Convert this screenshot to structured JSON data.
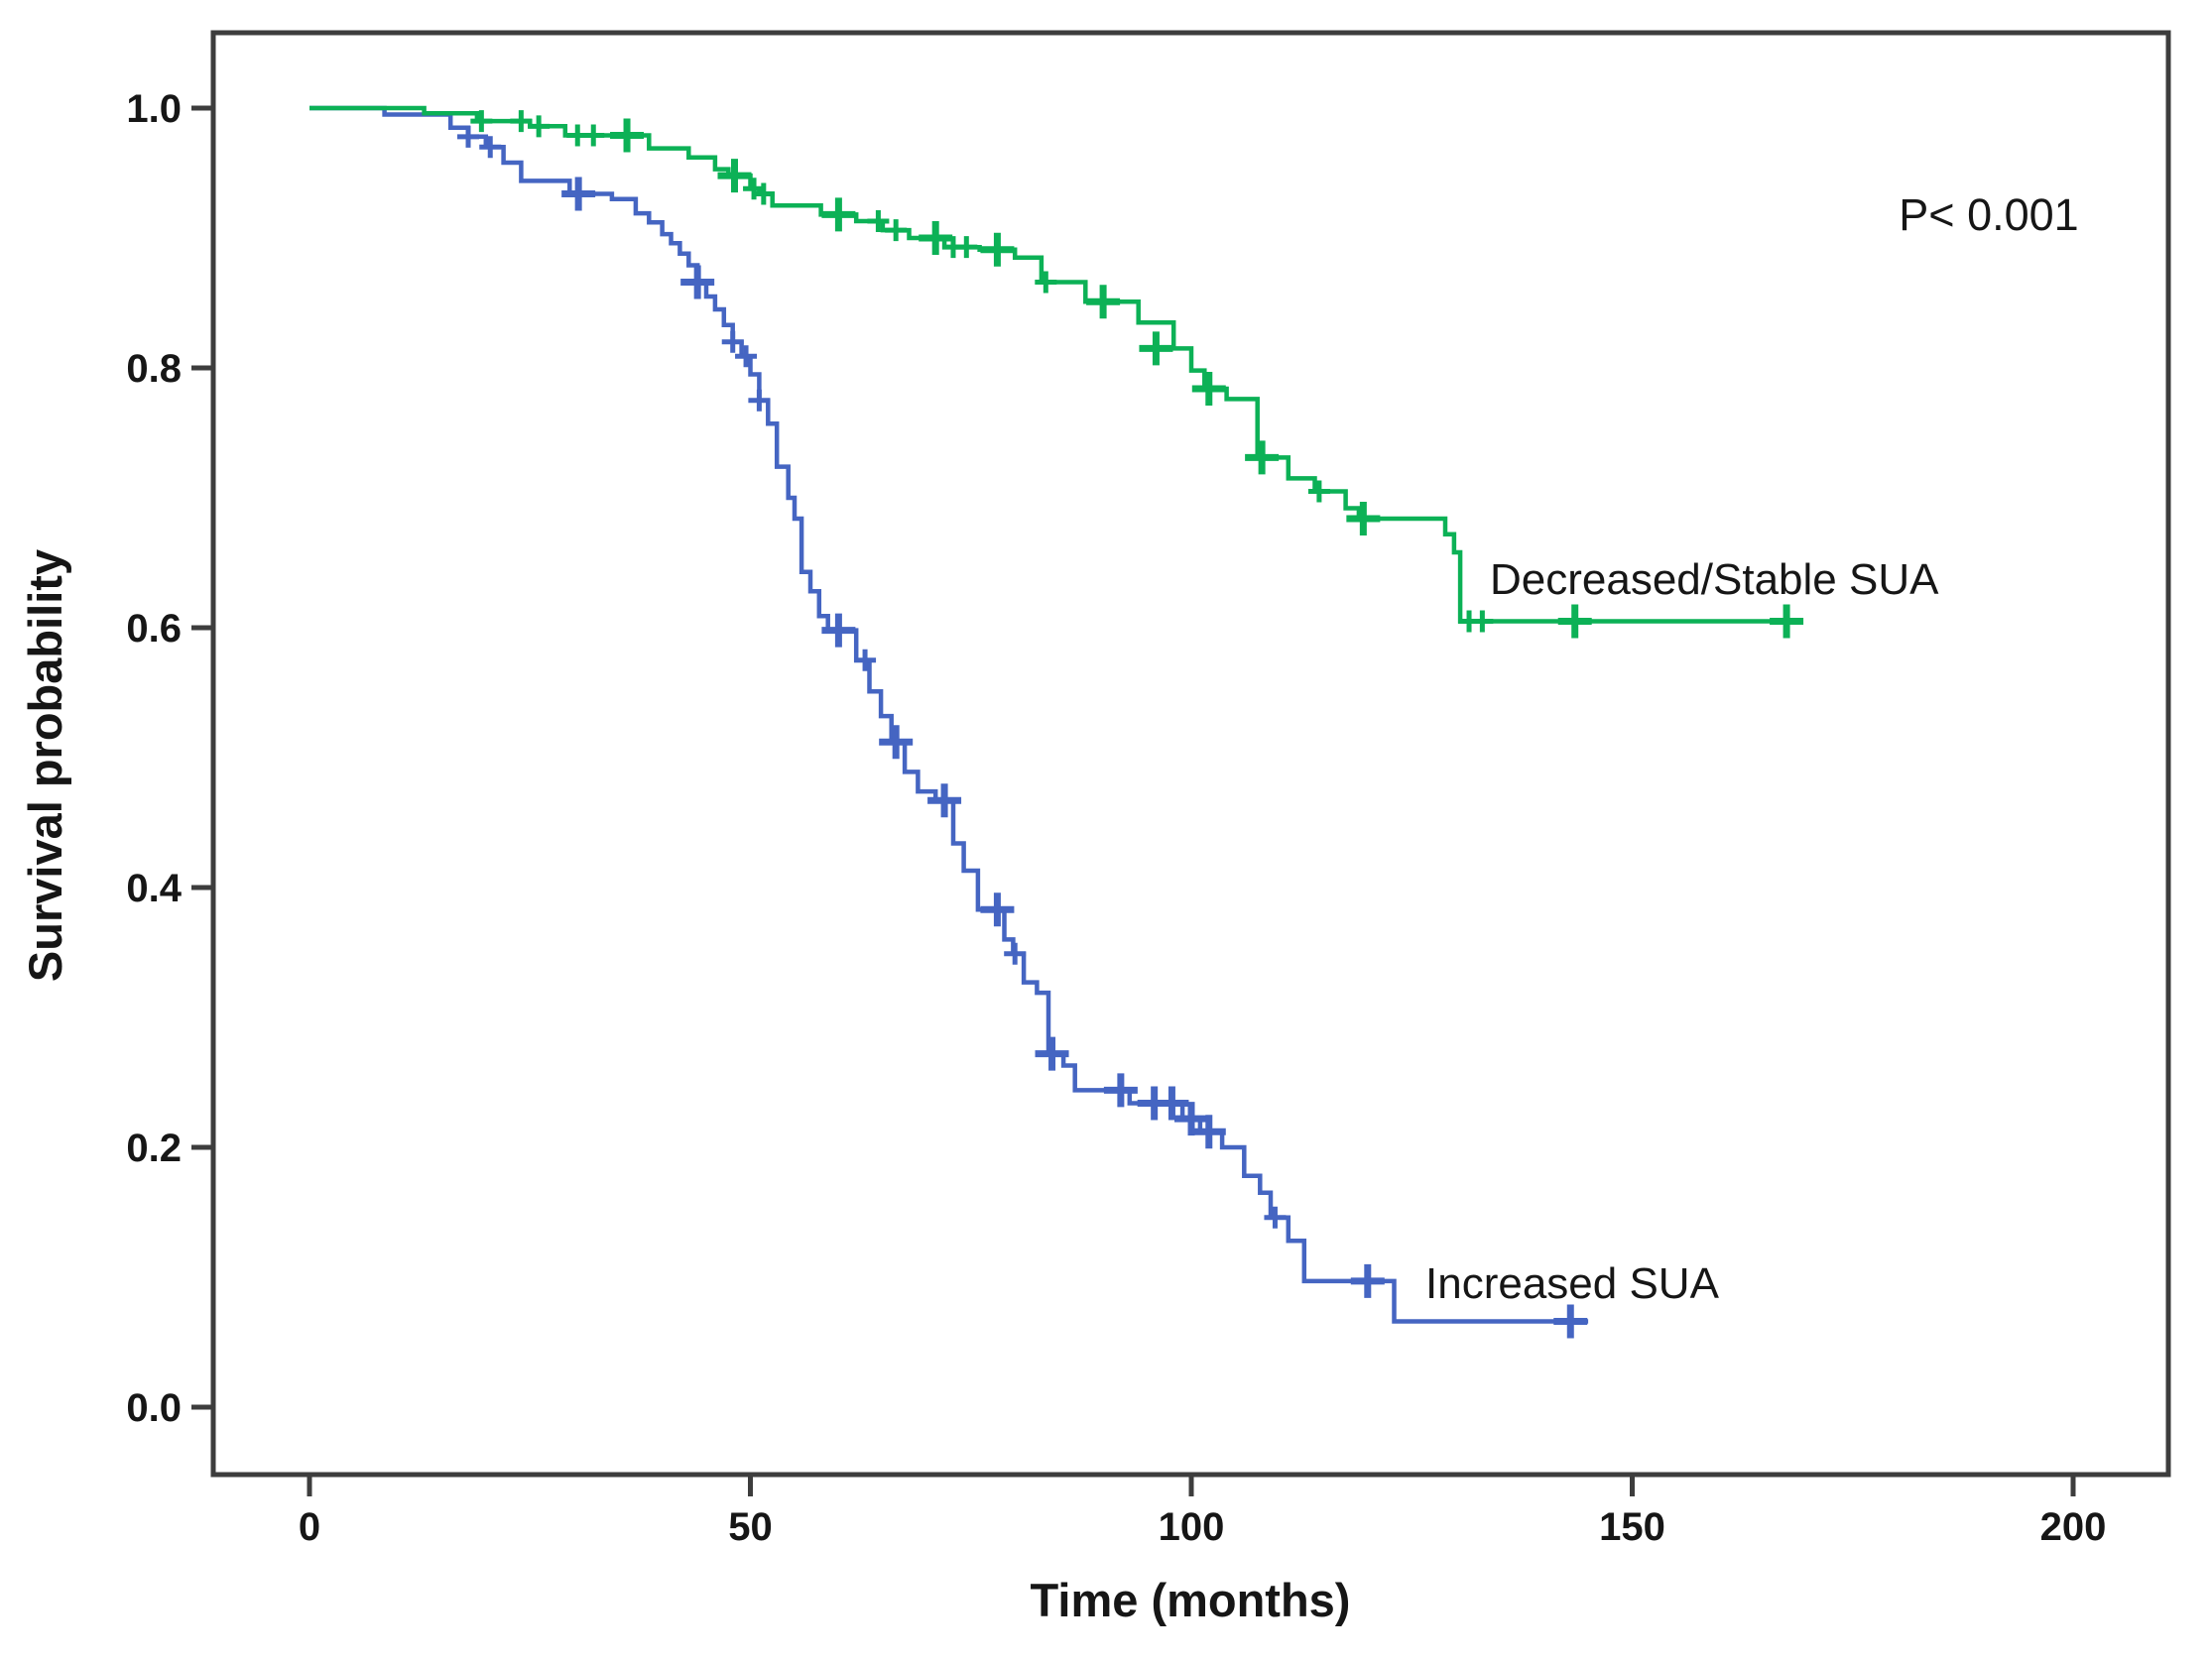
{
  "chart_data": {
    "type": "line",
    "subtype": "kaplan-meier-step",
    "title": "",
    "xlabel": "Time (months)",
    "ylabel": "Survival probability",
    "annotation": "P< 0.001",
    "grid": false,
    "legend_position": "inline-labels-on-curves",
    "x_ticks": [
      0,
      50,
      100,
      150,
      200
    ],
    "y_ticks": [
      {
        "label": "0.0",
        "value": 0.0
      },
      {
        "label": "0.2",
        "value": 0.2
      },
      {
        "label": "0.4",
        "value": 0.4
      },
      {
        "label": "0.6",
        "value": 0.6
      },
      {
        "label": "0.8",
        "value": 0.8
      },
      {
        "label": "1.0",
        "value": 1.0
      }
    ],
    "xlim": [
      -11,
      211
    ],
    "ylim": [
      -0.052,
      1.058
    ],
    "frame_color": "#3d3d3d",
    "text_color": "#161616",
    "series": [
      {
        "name": "Increased SUA",
        "color": "#4565c2",
        "end_time": 145,
        "steps": [
          [
            0,
            1.0
          ],
          [
            8.5,
            0.995
          ],
          [
            16,
            0.985
          ],
          [
            18,
            0.978
          ],
          [
            20,
            0.97
          ],
          [
            22,
            0.958
          ],
          [
            24,
            0.944
          ],
          [
            29.5,
            0.934
          ],
          [
            34.3,
            0.93
          ],
          [
            37,
            0.919
          ],
          [
            38.5,
            0.912
          ],
          [
            40,
            0.903
          ],
          [
            41,
            0.896
          ],
          [
            42,
            0.888
          ],
          [
            43,
            0.879
          ],
          [
            44,
            0.866
          ],
          [
            45,
            0.855
          ],
          [
            46,
            0.845
          ],
          [
            47,
            0.833
          ],
          [
            48,
            0.82
          ],
          [
            49,
            0.809
          ],
          [
            50,
            0.795
          ],
          [
            51,
            0.775
          ],
          [
            52,
            0.757
          ],
          [
            53,
            0.724
          ],
          [
            54.3,
            0.7
          ],
          [
            55,
            0.684
          ],
          [
            55.8,
            0.643
          ],
          [
            56.8,
            0.628
          ],
          [
            57.8,
            0.609
          ],
          [
            58.8,
            0.598
          ],
          [
            62,
            0.575
          ],
          [
            63.5,
            0.551
          ],
          [
            64.8,
            0.532
          ],
          [
            66,
            0.512
          ],
          [
            67.5,
            0.489
          ],
          [
            69,
            0.474
          ],
          [
            71,
            0.467
          ],
          [
            73,
            0.434
          ],
          [
            74.2,
            0.413
          ],
          [
            75.8,
            0.383
          ],
          [
            78.8,
            0.36
          ],
          [
            79.8,
            0.349
          ],
          [
            81,
            0.327
          ],
          [
            82.5,
            0.319
          ],
          [
            83.8,
            0.272
          ],
          [
            85.5,
            0.263
          ],
          [
            86.8,
            0.244
          ],
          [
            93,
            0.234
          ],
          [
            99,
            0.222
          ],
          [
            101,
            0.212
          ],
          [
            103.5,
            0.2
          ],
          [
            106,
            0.178
          ],
          [
            107.8,
            0.165
          ],
          [
            109,
            0.146
          ],
          [
            111,
            0.128
          ],
          [
            112.8,
            0.097
          ],
          [
            123,
            0.066
          ]
        ],
        "censors": [
          [
            18,
            0.978,
            1
          ],
          [
            20.5,
            0.97,
            1
          ],
          [
            30.5,
            0.934,
            2
          ],
          [
            44,
            0.866,
            2
          ],
          [
            48,
            0.82,
            1
          ],
          [
            49.5,
            0.809,
            1
          ],
          [
            51,
            0.775,
            1
          ],
          [
            60,
            0.598,
            2
          ],
          [
            63,
            0.575,
            1
          ],
          [
            66.5,
            0.512,
            2
          ],
          [
            72,
            0.467,
            2
          ],
          [
            78,
            0.383,
            2
          ],
          [
            80,
            0.349,
            1
          ],
          [
            84.2,
            0.272,
            2
          ],
          [
            92,
            0.244,
            2
          ],
          [
            95.8,
            0.234,
            2
          ],
          [
            97.8,
            0.234,
            2
          ],
          [
            100,
            0.222,
            2
          ],
          [
            102,
            0.212,
            2
          ],
          [
            109.5,
            0.146,
            1
          ],
          [
            120,
            0.097,
            2
          ],
          [
            143,
            0.066,
            2
          ]
        ]
      },
      {
        "name": "Decreased/Stable SUA",
        "color": "#0cb156",
        "end_time": 169,
        "steps": [
          [
            0,
            1.0
          ],
          [
            13,
            0.996
          ],
          [
            19,
            0.99
          ],
          [
            25,
            0.986
          ],
          [
            29,
            0.979
          ],
          [
            38.5,
            0.969
          ],
          [
            43,
            0.962
          ],
          [
            46,
            0.953
          ],
          [
            47.5,
            0.948
          ],
          [
            50,
            0.938
          ],
          [
            51,
            0.934
          ],
          [
            52.5,
            0.925
          ],
          [
            58,
            0.918
          ],
          [
            62,
            0.913
          ],
          [
            65,
            0.906
          ],
          [
            68,
            0.9
          ],
          [
            72,
            0.893
          ],
          [
            76,
            0.891
          ],
          [
            80,
            0.885
          ],
          [
            83,
            0.866
          ],
          [
            88,
            0.851
          ],
          [
            94,
            0.835
          ],
          [
            98,
            0.815
          ],
          [
            100,
            0.798
          ],
          [
            101.5,
            0.784
          ],
          [
            104,
            0.776
          ],
          [
            107.5,
            0.731
          ],
          [
            111,
            0.715
          ],
          [
            114,
            0.705
          ],
          [
            117.5,
            0.692
          ],
          [
            119,
            0.684
          ],
          [
            128.8,
            0.672
          ],
          [
            129.8,
            0.658
          ],
          [
            130.5,
            0.605
          ]
        ],
        "censors": [
          [
            19.5,
            0.99,
            1
          ],
          [
            24,
            0.99,
            1
          ],
          [
            26,
            0.986,
            1
          ],
          [
            30.4,
            0.979,
            1
          ],
          [
            32.2,
            0.979,
            1
          ],
          [
            36,
            0.979,
            2
          ],
          [
            48.2,
            0.948,
            2
          ],
          [
            50.4,
            0.938,
            1
          ],
          [
            51.5,
            0.934,
            1
          ],
          [
            60,
            0.918,
            2
          ],
          [
            64.5,
            0.913,
            1
          ],
          [
            66.5,
            0.906,
            1
          ],
          [
            71,
            0.9,
            2
          ],
          [
            73,
            0.893,
            1
          ],
          [
            74.5,
            0.893,
            1
          ],
          [
            78,
            0.891,
            2
          ],
          [
            83.5,
            0.866,
            1
          ],
          [
            90,
            0.851,
            2
          ],
          [
            96,
            0.815,
            2
          ],
          [
            102,
            0.784,
            2
          ],
          [
            108,
            0.731,
            2
          ],
          [
            114.5,
            0.705,
            1
          ],
          [
            119.5,
            0.684,
            2
          ],
          [
            131.5,
            0.605,
            1
          ],
          [
            133,
            0.605,
            1
          ],
          [
            143.5,
            0.605,
            2
          ],
          [
            167.5,
            0.605,
            2
          ]
        ]
      }
    ]
  }
}
